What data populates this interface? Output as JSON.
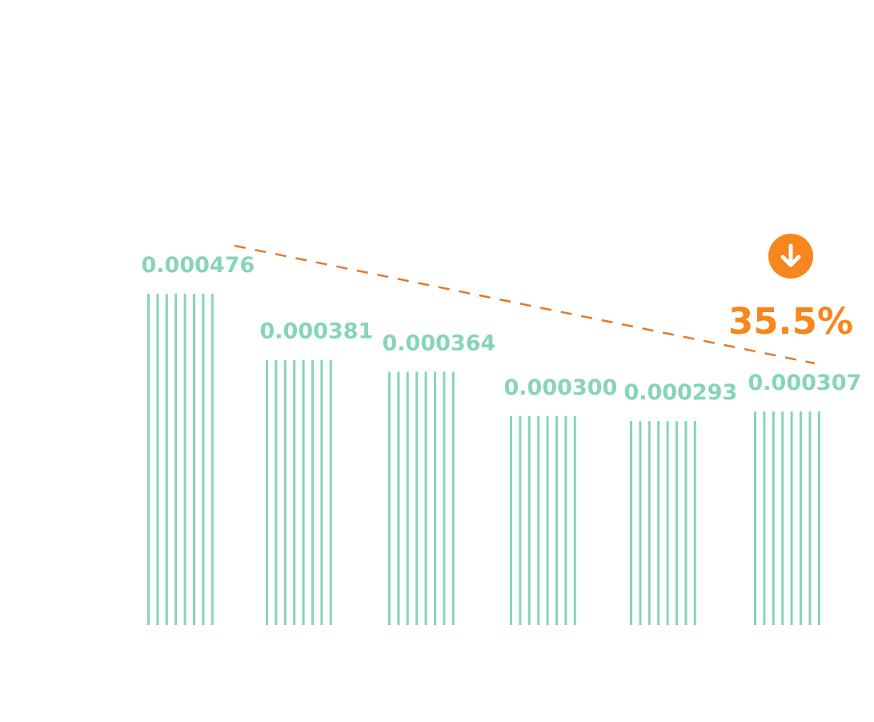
{
  "chart_data": {
    "type": "bar",
    "values": [
      0.000476,
      0.000381,
      0.000364,
      0.0003,
      0.000293,
      0.000307
    ],
    "data_labels": [
      "0.000476",
      "0.000381",
      "0.000364",
      "0.000300",
      "0.000293",
      "0.000307"
    ],
    "ylim": [
      0,
      0.000476
    ],
    "grid": false,
    "legend": "none",
    "trend": {
      "style": "dashed",
      "from_value": 0.000476,
      "to_value": 0.000307
    },
    "change": {
      "direction": "down",
      "label": "35.5%"
    }
  },
  "colors": {
    "bar": "#86d4ba",
    "label": "#86d4ba",
    "trend_line": "#e07a2c",
    "accent": "#f7861e",
    "background": "#ffffff"
  },
  "icons": {
    "change": "arrow-down-circle-icon"
  }
}
